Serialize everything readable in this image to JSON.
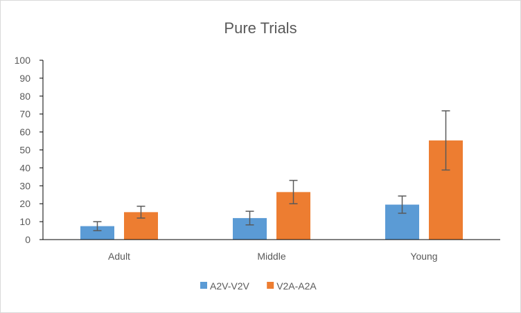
{
  "chart_data": {
    "type": "bar",
    "title": "Pure Trials",
    "xlabel": "",
    "ylabel": "",
    "categories": [
      "Adult",
      "Middle",
      "Young"
    ],
    "series": [
      {
        "name": "A2V-V2V",
        "color": "#5b9bd5",
        "values": [
          7.5,
          12,
          19.5
        ],
        "errors": [
          2.5,
          3.8,
          4.8
        ]
      },
      {
        "name": "V2A-A2A",
        "color": "#ed7d31",
        "values": [
          15.3,
          26.5,
          55.3
        ],
        "errors": [
          3.3,
          6.5,
          16.5
        ]
      }
    ],
    "ylim": [
      0,
      100
    ],
    "yticks": [
      0,
      10,
      20,
      30,
      40,
      50,
      60,
      70,
      80,
      90,
      100
    ],
    "grid": false,
    "legend_position": "bottom",
    "axis_color": "#000000",
    "errorbar_color": "#595959"
  }
}
